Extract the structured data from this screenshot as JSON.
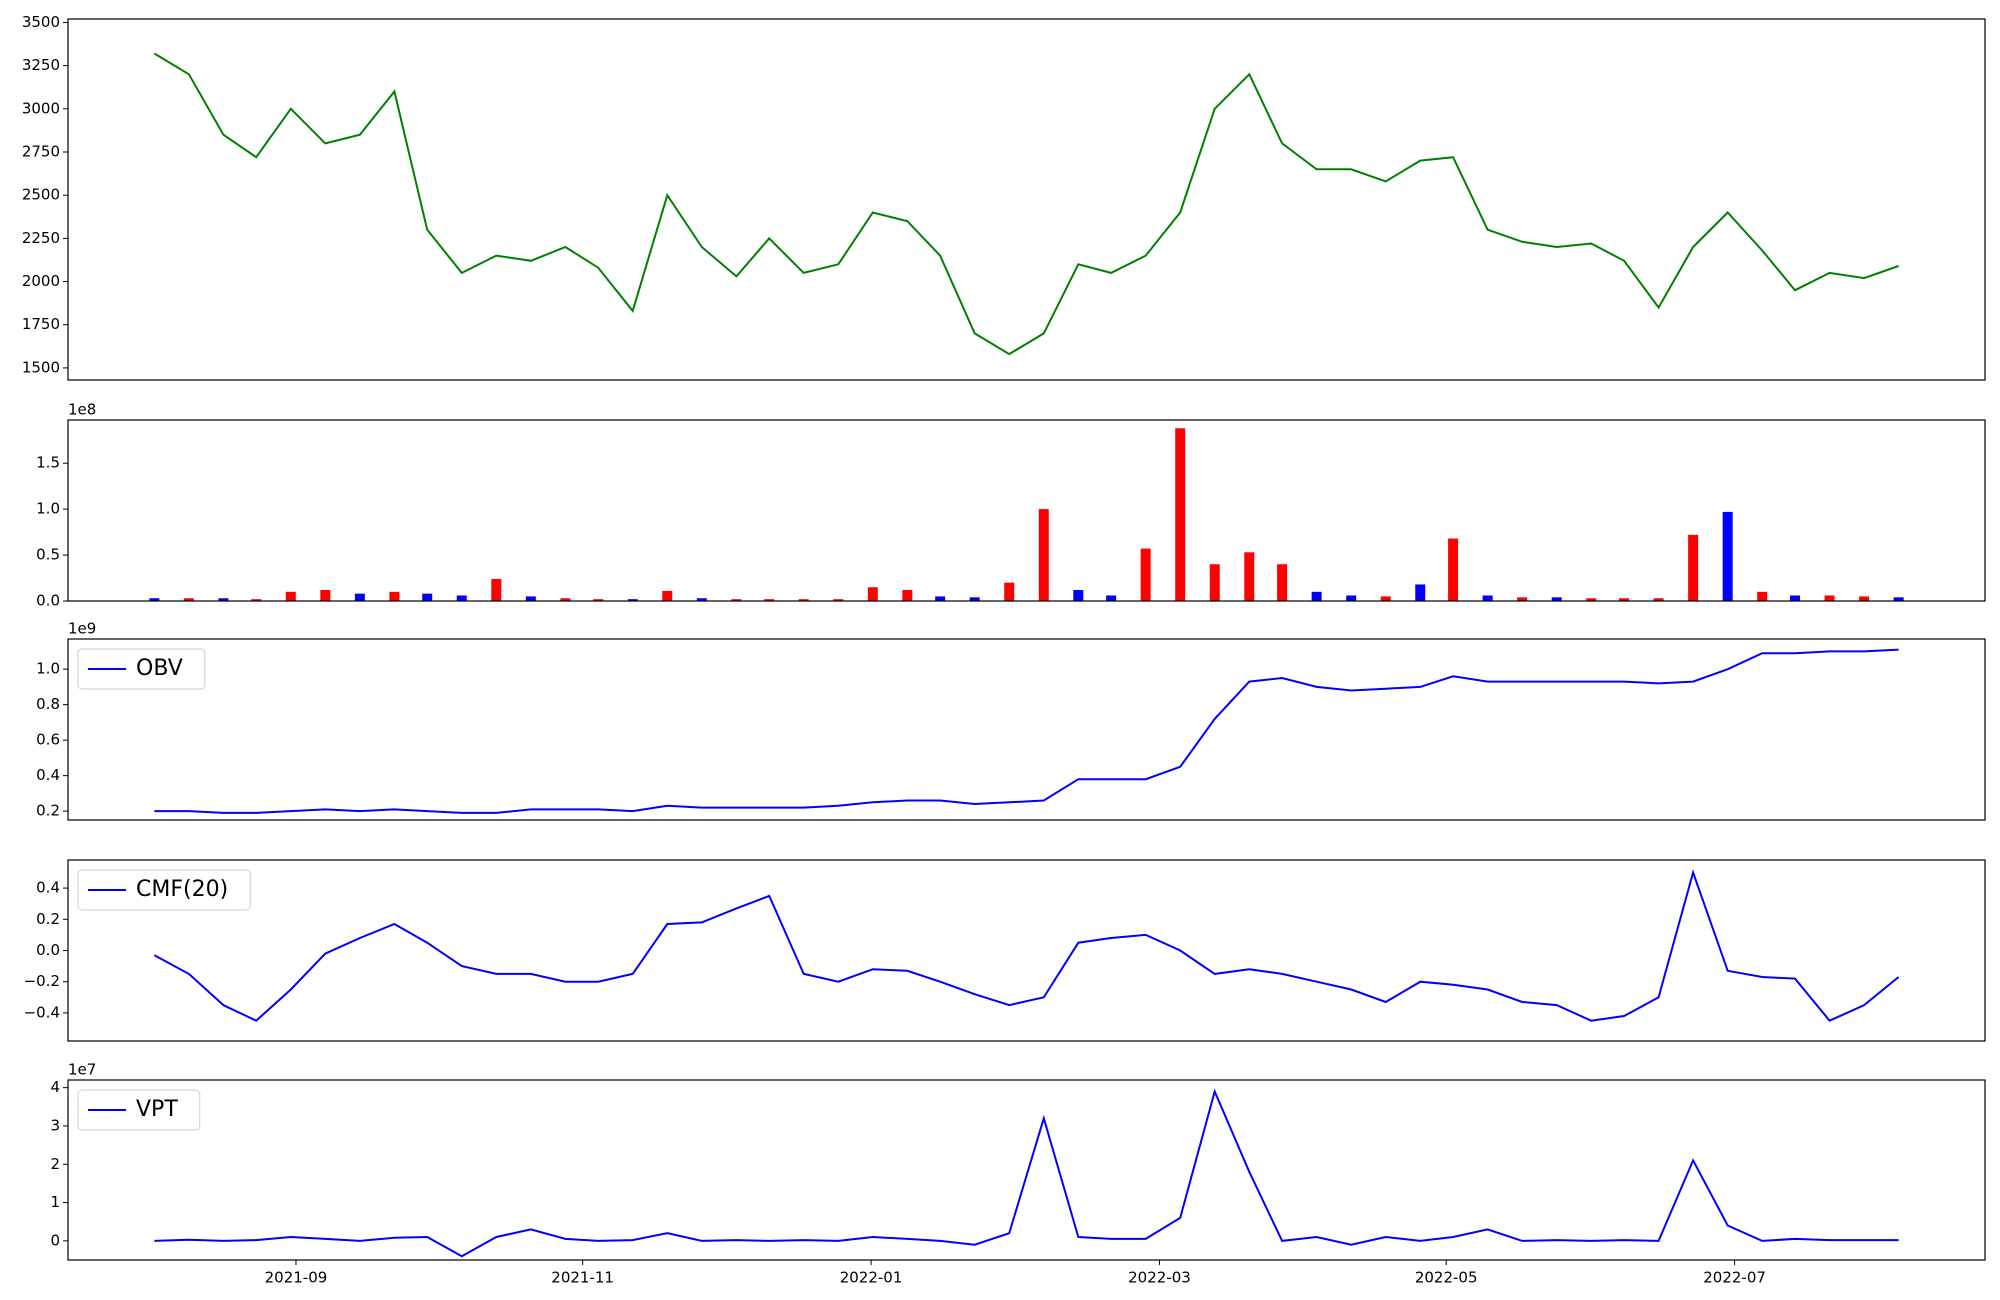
{
  "chart_data": [
    {
      "type": "line",
      "color": "#008000",
      "x": [
        2021.585,
        2021.605,
        2021.625,
        2021.644,
        2021.664,
        2021.684,
        2021.704,
        2021.724,
        2021.743,
        2021.763,
        2021.783,
        2021.803,
        2021.823,
        2021.842,
        2021.862,
        2021.882,
        2021.902,
        2021.922,
        2021.941,
        2021.961,
        2021.981,
        2022.001,
        2022.021,
        2022.04,
        2022.06,
        2022.08,
        2022.1,
        2022.12,
        2022.139,
        2022.159,
        2022.179,
        2022.199,
        2022.219,
        2022.238,
        2022.258,
        2022.278,
        2022.298,
        2022.318,
        2022.337,
        2022.357,
        2022.377,
        2022.397,
        2022.417,
        2022.436,
        2022.456,
        2022.476,
        2022.496,
        2022.516,
        2022.535,
        2022.555,
        2022.575,
        2022.595
      ],
      "values": [
        3320,
        3200,
        2850,
        2720,
        3000,
        2800,
        2850,
        3100,
        2300,
        2050,
        2150,
        2120,
        2200,
        2080,
        1830,
        2500,
        2200,
        2030,
        2250,
        2050,
        2100,
        2400,
        2350,
        2150,
        1700,
        1580,
        1700,
        2100,
        2050,
        2150,
        2400,
        3000,
        3200,
        2800,
        2650,
        2650,
        2580,
        2700,
        2720,
        2300,
        2230,
        2200,
        2220,
        2120,
        1850,
        2200,
        2400,
        2180,
        1950,
        2050,
        2020,
        2090
      ],
      "xlim": [
        2021.535,
        2022.645
      ],
      "ylim": [
        1430,
        3520
      ],
      "yticks": [
        1500,
        1750,
        2000,
        2250,
        2500,
        2750,
        3000,
        3250,
        3500
      ]
    },
    {
      "type": "bar",
      "offset_label": "1e8",
      "x": [
        2021.585,
        2021.605,
        2021.625,
        2021.644,
        2021.664,
        2021.684,
        2021.704,
        2021.724,
        2021.743,
        2021.763,
        2021.783,
        2021.803,
        2021.823,
        2021.842,
        2021.862,
        2021.882,
        2021.902,
        2021.922,
        2021.941,
        2021.961,
        2021.981,
        2022.001,
        2022.021,
        2022.04,
        2022.06,
        2022.08,
        2022.1,
        2022.12,
        2022.139,
        2022.159,
        2022.179,
        2022.199,
        2022.219,
        2022.238,
        2022.258,
        2022.278,
        2022.298,
        2022.318,
        2022.337,
        2022.357,
        2022.377,
        2022.397,
        2022.417,
        2022.436,
        2022.456,
        2022.476,
        2022.496,
        2022.516,
        2022.535,
        2022.555,
        2022.575,
        2022.595
      ],
      "values": [
        0.03,
        0.03,
        0.03,
        0.02,
        0.1,
        0.12,
        0.08,
        0.1,
        0.08,
        0.06,
        0.24,
        0.05,
        0.03,
        0.02,
        0.02,
        0.11,
        0.03,
        0.02,
        0.02,
        0.02,
        0.02,
        0.15,
        0.12,
        0.05,
        0.04,
        0.2,
        1.0,
        0.12,
        0.06,
        0.57,
        1.88,
        0.4,
        0.53,
        0.4,
        0.1,
        0.06,
        0.05,
        0.18,
        0.68,
        0.06,
        0.04,
        0.04,
        0.03,
        0.03,
        0.03,
        0.72,
        0.97,
        0.1,
        0.06,
        0.06,
        0.05,
        0.04
      ],
      "colors": [
        "#0000ff",
        "#ff0000",
        "#0000ff",
        "#ff0000",
        "#ff0000",
        "#ff0000",
        "#0000ff",
        "#ff0000",
        "#0000ff",
        "#0000ff",
        "#ff0000",
        "#0000ff",
        "#ff0000",
        "#ff0000",
        "#0000ff",
        "#ff0000",
        "#0000ff",
        "#ff0000",
        "#ff0000",
        "#ff0000",
        "#ff0000",
        "#ff0000",
        "#ff0000",
        "#0000ff",
        "#0000ff",
        "#ff0000",
        "#ff0000",
        "#0000ff",
        "#0000ff",
        "#ff0000",
        "#ff0000",
        "#ff0000",
        "#ff0000",
        "#ff0000",
        "#0000ff",
        "#0000ff",
        "#ff0000",
        "#0000ff",
        "#ff0000",
        "#0000ff",
        "#ff0000",
        "#0000ff",
        "#ff0000",
        "#ff0000",
        "#ff0000",
        "#ff0000",
        "#0000ff",
        "#ff0000",
        "#0000ff",
        "#ff0000",
        "#ff0000",
        "#0000ff"
      ],
      "xlim": [
        2021.535,
        2022.645
      ],
      "ylim": [
        0,
        1.97
      ],
      "yticks": [
        {
          "value": 0,
          "label": "0.0"
        },
        0.5,
        {
          "value": 1,
          "label": "1.0"
        },
        1.5
      ]
    },
    {
      "type": "line",
      "offset_label": "1e9",
      "legend": "upper left",
      "x": [
        2021.585,
        2021.605,
        2021.625,
        2021.644,
        2021.664,
        2021.684,
        2021.704,
        2021.724,
        2021.743,
        2021.763,
        2021.783,
        2021.803,
        2021.823,
        2021.842,
        2021.862,
        2021.882,
        2021.902,
        2021.922,
        2021.941,
        2021.961,
        2021.981,
        2022.001,
        2022.021,
        2022.04,
        2022.06,
        2022.08,
        2022.1,
        2022.12,
        2022.139,
        2022.159,
        2022.179,
        2022.199,
        2022.219,
        2022.238,
        2022.258,
        2022.278,
        2022.298,
        2022.318,
        2022.337,
        2022.357,
        2022.377,
        2022.397,
        2022.417,
        2022.436,
        2022.456,
        2022.476,
        2022.496,
        2022.516,
        2022.535,
        2022.555,
        2022.575,
        2022.595
      ],
      "series": [
        {
          "name": "OBV",
          "color": "#0000ff",
          "values": [
            0.2,
            0.2,
            0.19,
            0.19,
            0.2,
            0.21,
            0.2,
            0.21,
            0.2,
            0.19,
            0.19,
            0.21,
            0.21,
            0.21,
            0.2,
            0.23,
            0.22,
            0.22,
            0.22,
            0.22,
            0.23,
            0.25,
            0.26,
            0.26,
            0.24,
            0.25,
            0.26,
            0.38,
            0.38,
            0.38,
            0.45,
            0.72,
            0.93,
            0.95,
            0.9,
            0.88,
            0.89,
            0.9,
            0.96,
            0.93,
            0.93,
            0.93,
            0.93,
            0.93,
            0.92,
            0.93,
            1.0,
            1.09,
            1.09,
            1.1,
            1.1,
            1.11
          ]
        }
      ],
      "xlim": [
        2021.535,
        2022.645
      ],
      "ylim": [
        0.15,
        1.17
      ],
      "yticks": [
        0.2,
        0.4,
        0.6,
        0.8,
        {
          "value": 1,
          "label": "1.0"
        }
      ]
    },
    {
      "type": "line",
      "legend": "upper left",
      "x": [
        2021.585,
        2021.605,
        2021.625,
        2021.644,
        2021.664,
        2021.684,
        2021.704,
        2021.724,
        2021.743,
        2021.763,
        2021.783,
        2021.803,
        2021.823,
        2021.842,
        2021.862,
        2021.882,
        2021.902,
        2021.922,
        2021.941,
        2021.961,
        2021.981,
        2022.001,
        2022.021,
        2022.04,
        2022.06,
        2022.08,
        2022.1,
        2022.12,
        2022.139,
        2022.159,
        2022.179,
        2022.199,
        2022.219,
        2022.238,
        2022.258,
        2022.278,
        2022.298,
        2022.318,
        2022.337,
        2022.357,
        2022.377,
        2022.397,
        2022.417,
        2022.436,
        2022.456,
        2022.476,
        2022.496,
        2022.516,
        2022.535,
        2022.555,
        2022.575,
        2022.595
      ],
      "series": [
        {
          "name": "CMF(20)",
          "color": "#0000ff",
          "values": [
            -0.03,
            -0.15,
            -0.35,
            -0.45,
            -0.25,
            -0.02,
            0.08,
            0.17,
            0.05,
            -0.1,
            -0.15,
            -0.15,
            -0.2,
            -0.2,
            -0.15,
            0.17,
            0.18,
            0.27,
            0.35,
            -0.15,
            -0.2,
            -0.12,
            -0.13,
            -0.2,
            -0.28,
            -0.35,
            -0.3,
            0.05,
            0.08,
            0.1,
            0.0,
            -0.15,
            -0.12,
            -0.15,
            -0.2,
            -0.25,
            -0.33,
            -0.2,
            -0.22,
            -0.25,
            -0.33,
            -0.35,
            -0.45,
            -0.42,
            -0.3,
            0.5,
            -0.13,
            -0.17,
            -0.18,
            -0.45,
            -0.35,
            -0.17
          ]
        }
      ],
      "xlim": [
        2021.535,
        2022.645
      ],
      "ylim": [
        -0.58,
        0.58
      ],
      "yticks": [
        {
          "value": -0.4,
          "label": "−0.4"
        },
        {
          "value": -0.2,
          "label": "−0.2"
        },
        {
          "value": 0,
          "label": "0.0"
        },
        0.2,
        0.4
      ]
    },
    {
      "type": "line",
      "offset_label": "1e7",
      "legend": "upper left",
      "x": [
        2021.585,
        2021.605,
        2021.625,
        2021.644,
        2021.664,
        2021.684,
        2021.704,
        2021.724,
        2021.743,
        2021.763,
        2021.783,
        2021.803,
        2021.823,
        2021.842,
        2021.862,
        2021.882,
        2021.902,
        2021.922,
        2021.941,
        2021.961,
        2021.981,
        2022.001,
        2022.021,
        2022.04,
        2022.06,
        2022.08,
        2022.1,
        2022.12,
        2022.139,
        2022.159,
        2022.179,
        2022.199,
        2022.219,
        2022.238,
        2022.258,
        2022.278,
        2022.298,
        2022.318,
        2022.337,
        2022.357,
        2022.377,
        2022.397,
        2022.417,
        2022.436,
        2022.456,
        2022.476,
        2022.496,
        2022.516,
        2022.535,
        2022.555,
        2022.575,
        2022.595
      ],
      "series": [
        {
          "name": "VPT",
          "color": "#0000ff",
          "values": [
            0.0,
            0.03,
            0.0,
            0.02,
            0.1,
            0.05,
            0.0,
            0.08,
            0.1,
            -0.4,
            0.1,
            0.3,
            0.05,
            0.0,
            0.02,
            0.2,
            0.0,
            0.02,
            0.0,
            0.02,
            0.0,
            0.1,
            0.05,
            0.0,
            -0.1,
            0.2,
            3.2,
            0.1,
            0.05,
            0.05,
            0.6,
            3.9,
            1.8,
            0.0,
            0.1,
            -0.1,
            0.1,
            0.0,
            0.1,
            0.3,
            0.0,
            0.02,
            0.0,
            0.02,
            0.0,
            2.1,
            0.4,
            0.0,
            0.05,
            0.02,
            0.02,
            0.02
          ]
        }
      ],
      "xlim": [
        2021.535,
        2022.645
      ],
      "ylim": [
        -0.5,
        4.2
      ],
      "yticks": [
        0,
        1,
        2,
        3,
        4
      ],
      "xticks": [
        {
          "value": 2021.667,
          "label": "2021-09"
        },
        {
          "value": 2021.833,
          "label": "2021-11"
        },
        {
          "value": 2022.0,
          "label": "2022-01"
        },
        {
          "value": 2022.167,
          "label": "2022-03"
        },
        {
          "value": 2022.333,
          "label": "2022-05"
        },
        {
          "value": 2022.5,
          "label": "2022-07"
        }
      ]
    }
  ]
}
